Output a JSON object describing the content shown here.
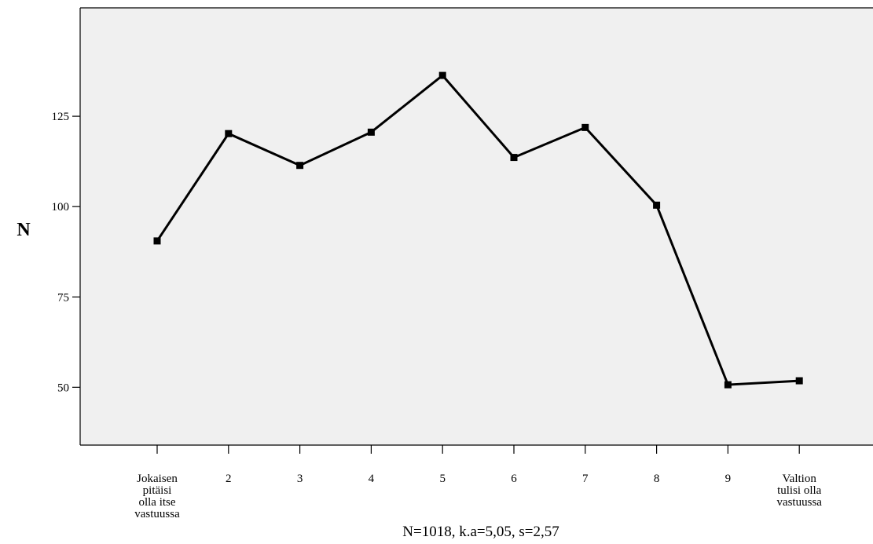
{
  "chart_data": {
    "type": "line",
    "categories": [
      "Jokaisen\npitäisi\nolla itse\nvastuussa",
      "2",
      "3",
      "4",
      "5",
      "6",
      "7",
      "8",
      "9",
      "Valtion\ntulisi olla\nvastuussa"
    ],
    "values": [
      90.5,
      120.2,
      111.4,
      120.6,
      136.3,
      113.6,
      121.9,
      100.4,
      50.7,
      51.8
    ],
    "ylabel": "N",
    "xlabel": "",
    "ylim": [
      34,
      155
    ],
    "yticks": [
      50,
      75,
      100,
      125
    ],
    "ytick_labels": [
      "50",
      "75",
      "100",
      "125"
    ],
    "note": "N=1018, k.a=5,05, s=2,57",
    "grid": false,
    "legend": "none",
    "colors": {
      "plot_bg": "#f0f0f0",
      "line": "#000000",
      "marker": "#000000"
    }
  }
}
